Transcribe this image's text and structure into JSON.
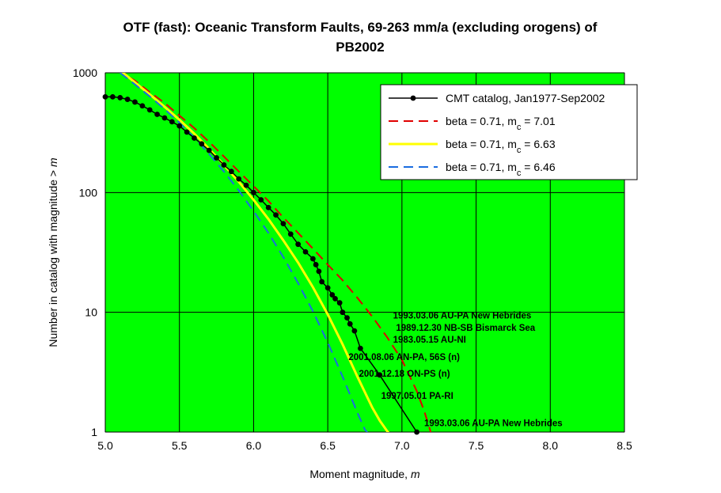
{
  "chart_data": {
    "type": "line",
    "title_line1": "OTF (fast): Oceanic Transform Faults, 69-263 mm/a (excluding orogens) of",
    "title_line2": "PB2002",
    "xlabel": "Moment magnitude, ",
    "xlabel_var": "m",
    "ylabel": "Number in catalog with magnitude  >  ",
    "ylabel_var": "m",
    "xlim": [
      5.0,
      8.5
    ],
    "ylim": [
      1,
      1000
    ],
    "y_scale": "log",
    "x_ticks": [
      "5.0",
      "5.5",
      "6.0",
      "6.5",
      "7.0",
      "7.5",
      "8.0",
      "8.5"
    ],
    "y_ticks": [
      "1",
      "10",
      "100",
      "1000"
    ],
    "grid": true,
    "background": "#00ff00",
    "legend_position": "top-right",
    "series": [
      {
        "name": "CMT catalog, Jan1977-Sep2002",
        "color": "#000000",
        "style": "solid-markers",
        "x": [
          5.0,
          5.05,
          5.1,
          5.15,
          5.2,
          5.25,
          5.3,
          5.35,
          5.4,
          5.45,
          5.5,
          5.55,
          5.6,
          5.65,
          5.7,
          5.75,
          5.8,
          5.85,
          5.9,
          5.95,
          6.0,
          6.05,
          6.1,
          6.15,
          6.2,
          6.25,
          6.3,
          6.35,
          6.4,
          6.42,
          6.44,
          6.46,
          6.5,
          6.53,
          6.55,
          6.58,
          6.6,
          6.63,
          6.65,
          6.68,
          6.72,
          6.85,
          7.1
        ],
        "y": [
          630,
          630,
          620,
          600,
          570,
          530,
          490,
          450,
          420,
          390,
          360,
          320,
          285,
          255,
          225,
          195,
          170,
          150,
          130,
          115,
          100,
          87,
          75,
          65,
          55,
          45,
          37,
          32,
          28,
          25,
          22,
          18,
          16,
          14,
          13,
          12,
          10,
          9,
          8,
          7,
          5,
          3,
          1
        ]
      },
      {
        "name": "beta = 0.71, m",
        "sub": "c",
        "tail": " = 7.01",
        "color": "#e00000",
        "style": "dashed",
        "x": [
          5.08,
          5.2,
          5.3,
          5.4,
          5.5,
          5.6,
          5.7,
          5.8,
          5.9,
          6.0,
          6.1,
          6.2,
          6.3,
          6.4,
          6.5,
          6.6,
          6.7,
          6.8,
          6.9,
          7.0,
          7.1,
          7.15,
          7.2
        ],
        "y": [
          1050,
          860,
          690,
          560,
          440,
          345,
          265,
          200,
          150,
          113,
          85,
          62,
          46,
          34,
          25,
          18.5,
          13.2,
          9.2,
          6.2,
          4.0,
          2.2,
          1.5,
          0.95
        ]
      },
      {
        "name": "beta = 0.71, m",
        "sub": "c",
        "tail": " = 6.63",
        "color": "#ffff00",
        "style": "solid",
        "x": [
          5.1,
          5.2,
          5.3,
          5.4,
          5.5,
          5.6,
          5.7,
          5.8,
          5.9,
          6.0,
          6.1,
          6.2,
          6.3,
          6.4,
          6.5,
          6.6,
          6.7,
          6.8,
          6.85,
          6.9,
          6.92
        ],
        "y": [
          1050,
          830,
          660,
          520,
          405,
          310,
          232,
          170,
          123,
          87,
          60,
          40,
          26,
          16.2,
          9.6,
          5.4,
          2.9,
          1.6,
          1.25,
          1.02,
          0.95
        ]
      },
      {
        "name": "beta = 0.71, m",
        "sub": "c",
        "tail": " = 6.46",
        "color": "#1a6ce0",
        "style": "dashed",
        "x": [
          5.1,
          5.2,
          5.3,
          5.4,
          5.5,
          5.6,
          5.7,
          5.8,
          5.9,
          6.0,
          6.1,
          6.2,
          6.3,
          6.4,
          6.5,
          6.6,
          6.7,
          6.75,
          6.78
        ],
        "y": [
          1000,
          800,
          635,
          498,
          383,
          287,
          210,
          150,
          104,
          70,
          46,
          29,
          17.5,
          10.2,
          5.6,
          2.9,
          1.45,
          1.05,
          0.95
        ]
      }
    ],
    "annotations": [
      {
        "text": "1993.03.06 AU-PA New Hebrides",
        "x": 6.94,
        "y": 8.9
      },
      {
        "text": "1989.12.30 NB-SB Bismarck Sea",
        "x": 6.96,
        "y": 7.0
      },
      {
        "text": "1983.05.15 AU-NI",
        "x": 6.94,
        "y": 5.6
      },
      {
        "text": "2001.08.06 AN-PA, 56S (n)",
        "x": 6.64,
        "y": 4.0
      },
      {
        "text": "2001.12.18 ON-PS (n)",
        "x": 6.71,
        "y": 2.9
      },
      {
        "text": "1997.05.01 PA-RI",
        "x": 6.86,
        "y": 1.9
      },
      {
        "text": "1993.03.06 AU-PA New Hebrides",
        "x": 7.15,
        "y": 1.12
      }
    ]
  }
}
